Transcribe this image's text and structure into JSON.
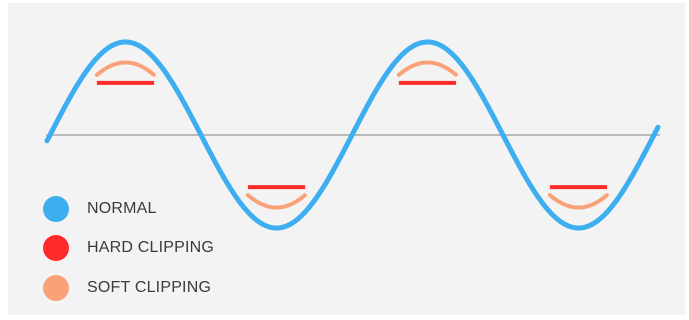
{
  "legend": {
    "items": [
      {
        "key": "normal",
        "label": "NORMAL",
        "color": "#3daeef"
      },
      {
        "key": "hard",
        "label": "HARD CLIPPING",
        "color": "#ff2a2a"
      },
      {
        "key": "soft",
        "label": "SOFT CLIPPING",
        "color": "#f9a27a"
      }
    ]
  },
  "colors": {
    "background": "#f3f3f3",
    "axis": "#a8a8a8",
    "normal": "#3daeef",
    "hard": "#ff2a2a",
    "soft": "#f9a27a"
  }
}
